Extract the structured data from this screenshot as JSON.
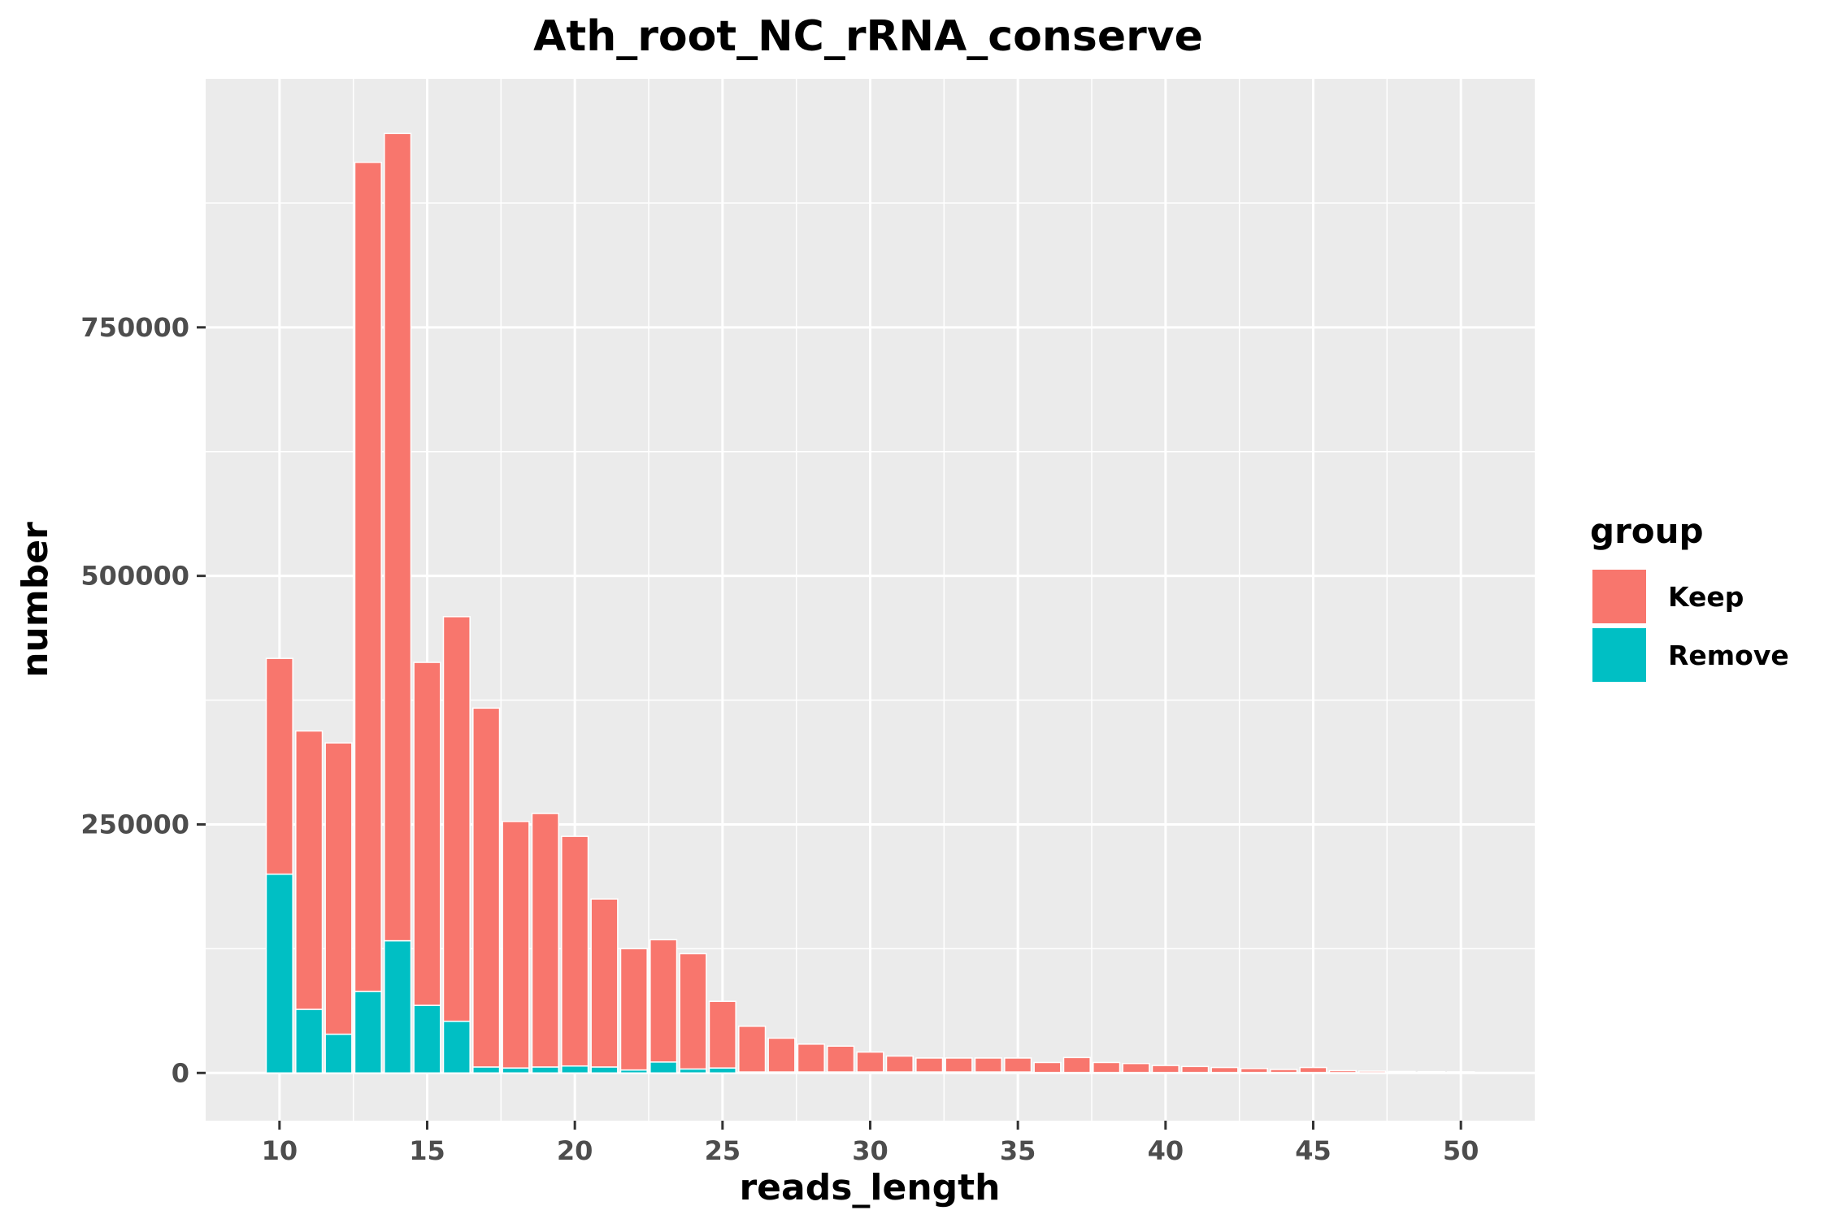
{
  "chart_data": {
    "type": "bar",
    "stacked": true,
    "title": "Ath_root_NC_rRNA_conserve",
    "xlabel": "reads_length",
    "ylabel": "number",
    "xlim": [
      7.5,
      52.5
    ],
    "ylim": [
      -48000,
      1000000
    ],
    "x_ticks": [
      10,
      15,
      20,
      25,
      30,
      35,
      40,
      45,
      50
    ],
    "y_ticks": [
      0,
      250000,
      500000,
      750000
    ],
    "x_tick_labels": [
      "10",
      "15",
      "20",
      "25",
      "30",
      "35",
      "40",
      "45",
      "50"
    ],
    "y_tick_labels": [
      "0",
      "250000",
      "500000",
      "750000"
    ],
    "grid": true,
    "legend": {
      "title": "group",
      "position": "right"
    },
    "categories": [
      10,
      11,
      12,
      13,
      14,
      15,
      16,
      17,
      18,
      19,
      20,
      21,
      22,
      23,
      24,
      25,
      26,
      27,
      28,
      29,
      30,
      31,
      32,
      33,
      34,
      35,
      36,
      37,
      38,
      39,
      40,
      41,
      42,
      43,
      44,
      45,
      46,
      47,
      48,
      49,
      50
    ],
    "series": [
      {
        "name": "Keep",
        "color": "#F8766D",
        "values": [
          217000,
          280000,
          293000,
          834000,
          812000,
          345000,
          407000,
          361000,
          248000,
          255000,
          231000,
          169000,
          122000,
          123000,
          116000,
          67000,
          46000,
          34000,
          28000,
          26000,
          20000,
          16000,
          14000,
          14000,
          14000,
          14000,
          10000,
          15000,
          10000,
          9000,
          7000,
          6000,
          5000,
          4000,
          3000,
          5000,
          2000,
          1500,
          1200,
          1000,
          800
        ]
      },
      {
        "name": "Remove",
        "color": "#00BFC4",
        "values": [
          200000,
          64000,
          39000,
          82000,
          133000,
          68000,
          52000,
          6000,
          5000,
          6000,
          7000,
          6000,
          3000,
          11000,
          4000,
          5000,
          1000,
          1000,
          1000,
          1000,
          1000,
          1000,
          1000,
          1000,
          1000,
          1000,
          500,
          500,
          500,
          500,
          500,
          500,
          500,
          500,
          500,
          500,
          300,
          300,
          300,
          300,
          300
        ]
      }
    ]
  }
}
